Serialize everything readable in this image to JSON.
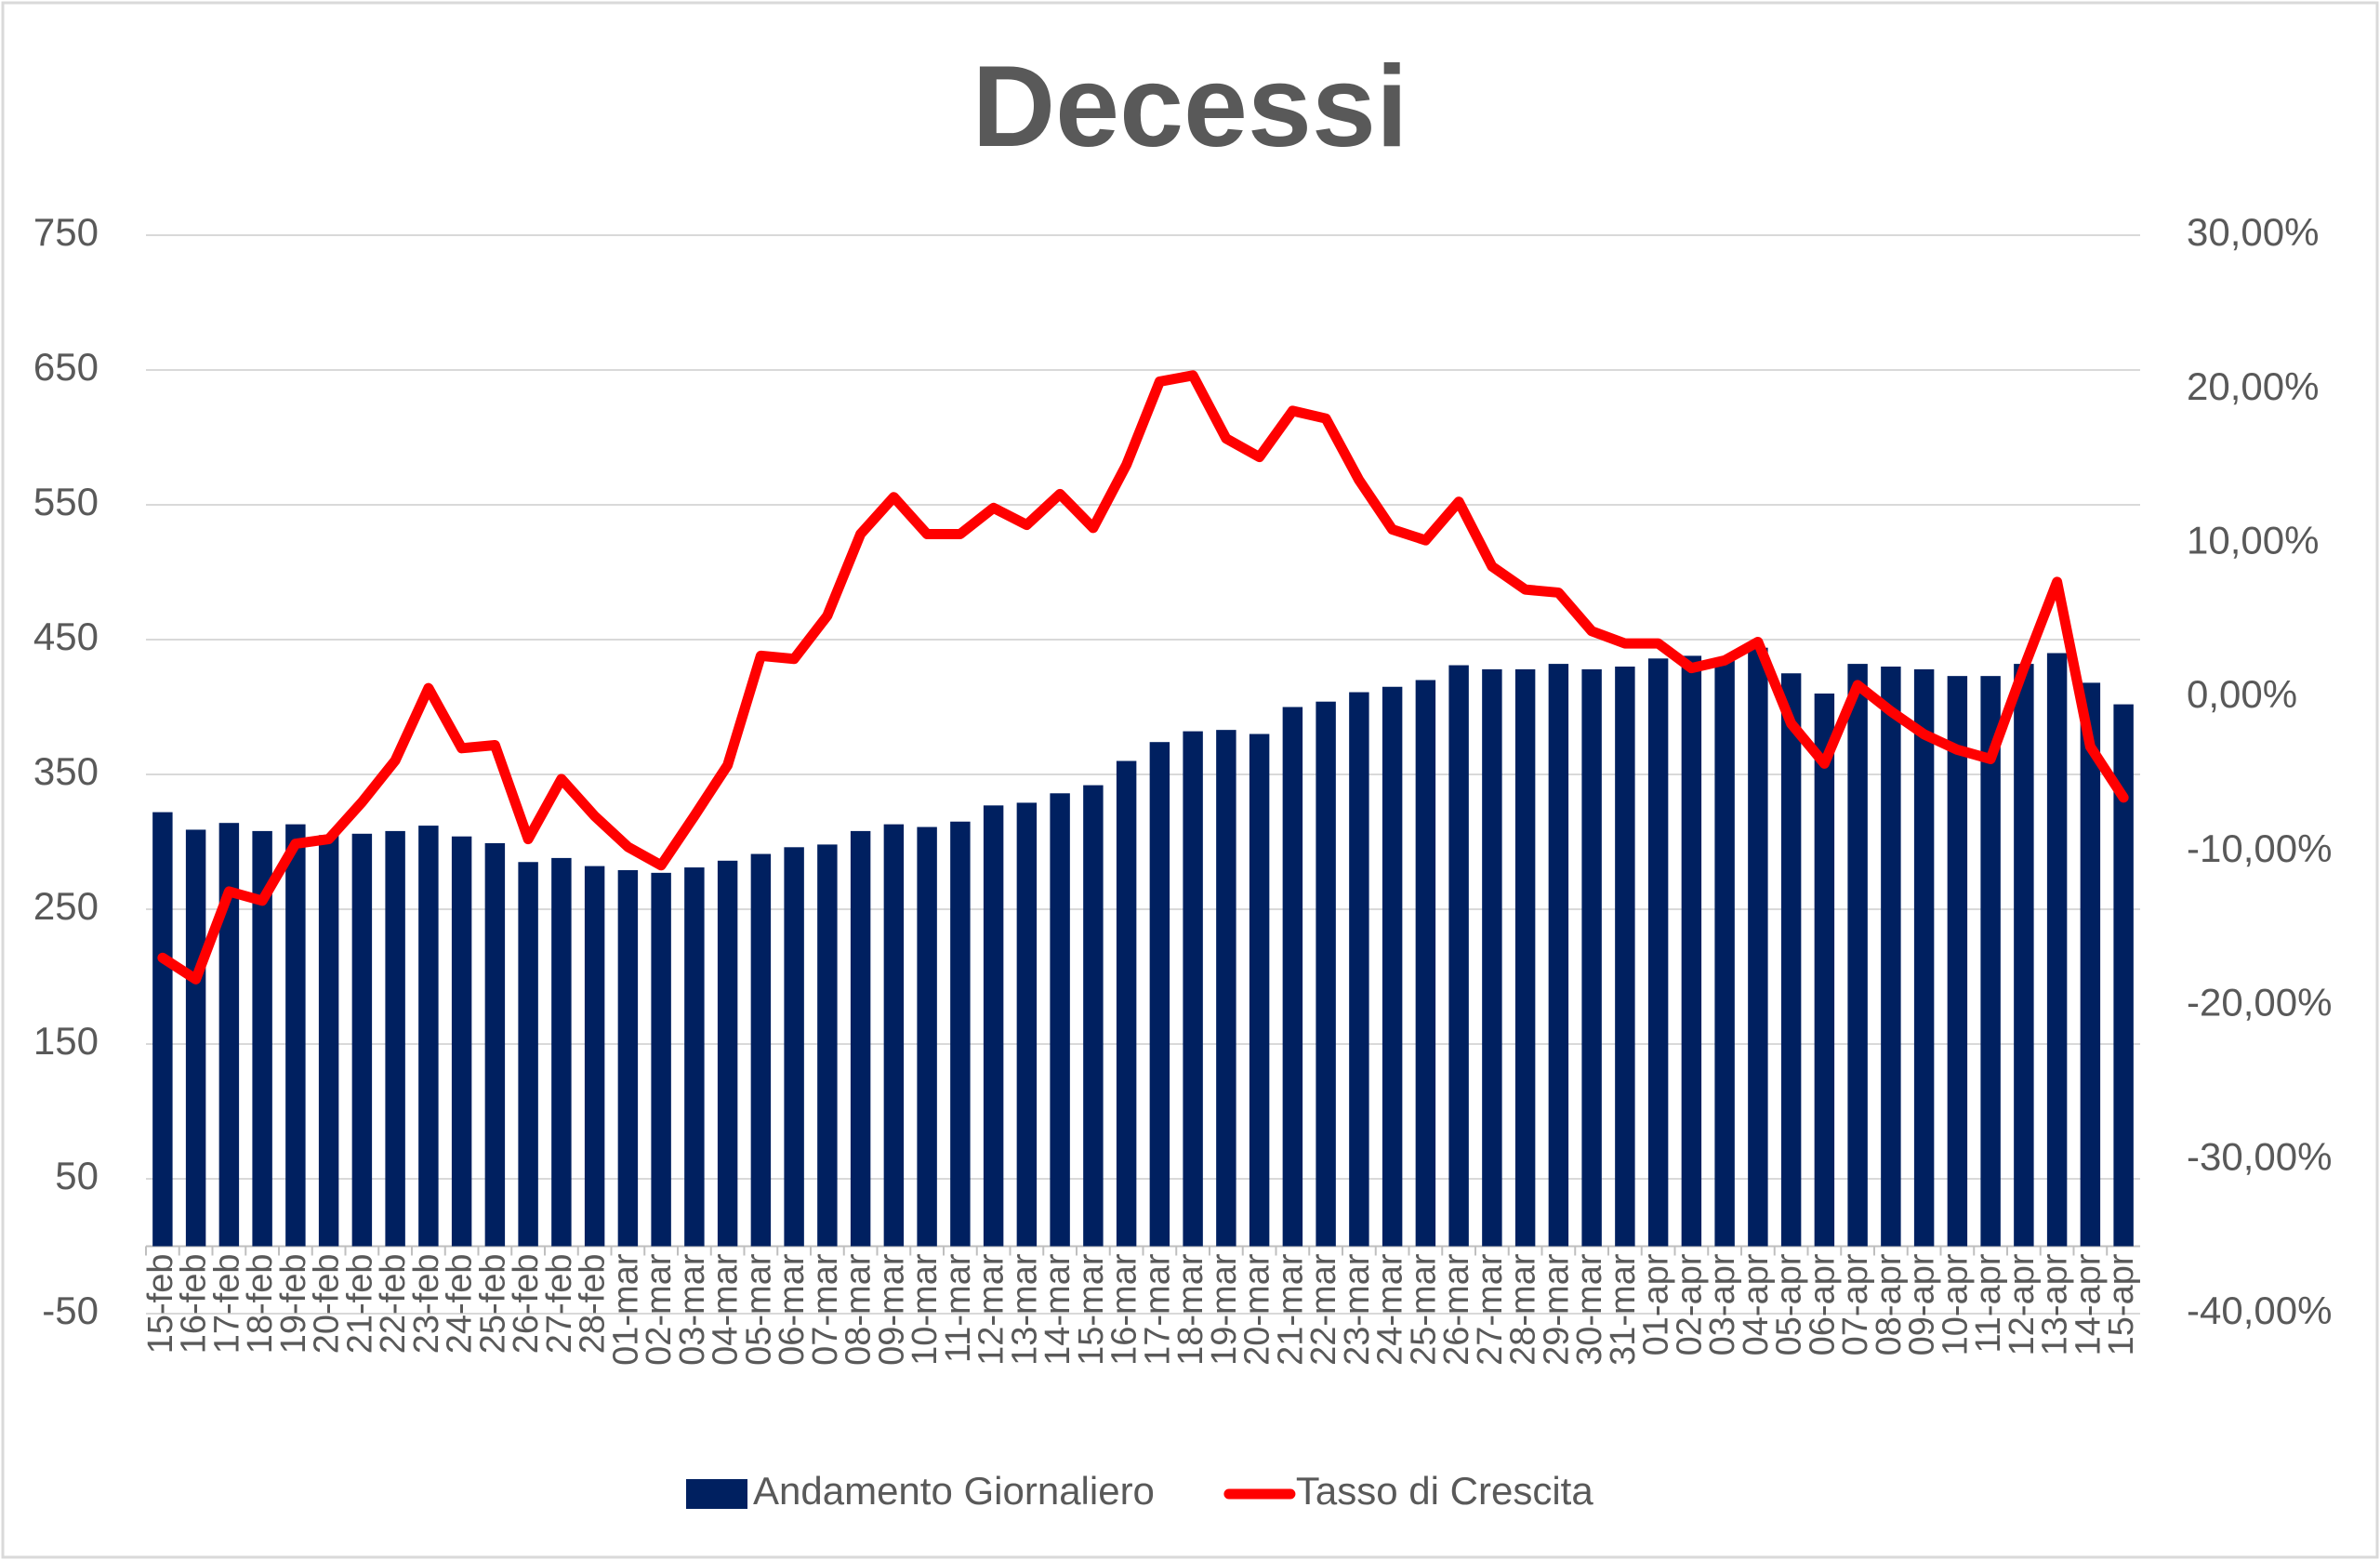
{
  "chart_data": {
    "type": "bar-line",
    "title": "Decessi",
    "categories": [
      "15-feb",
      "16-feb",
      "17-feb",
      "18-feb",
      "19-feb",
      "20-feb",
      "21-feb",
      "22-feb",
      "23-feb",
      "24-feb",
      "25-feb",
      "26-feb",
      "27-feb",
      "28-feb",
      "01-mar",
      "02-mar",
      "03-mar",
      "04-mar",
      "05-mar",
      "06-mar",
      "07-mar",
      "08-mar",
      "09-mar",
      "10-mar",
      "11-mar",
      "12-mar",
      "13-mar",
      "14-mar",
      "15-mar",
      "16-mar",
      "17-mar",
      "18-mar",
      "19-mar",
      "20-mar",
      "21-mar",
      "22-mar",
      "23-mar",
      "24-mar",
      "25-mar",
      "26-mar",
      "27-mar",
      "28-mar",
      "29-mar",
      "30-mar",
      "31-mar",
      "01-apr",
      "02-apr",
      "03-apr",
      "04-apr",
      "05-apr",
      "06-apr",
      "07-apr",
      "08-apr",
      "09-apr",
      "10-apr",
      "11-apr",
      "12-apr",
      "13-apr",
      "14-apr",
      "15-apr"
    ],
    "series": [
      {
        "name": "Andamento Giornaliero",
        "type": "bar",
        "color": "#002060",
        "values": [
          322,
          309,
          314,
          308,
          313,
          305,
          306,
          308,
          312,
          304,
          299,
          285,
          288,
          282,
          279,
          277,
          281,
          286,
          291,
          296,
          298,
          308,
          313,
          311,
          315,
          327,
          329,
          336,
          342,
          360,
          374,
          382,
          383,
          380,
          400,
          404,
          411,
          415,
          420,
          431,
          428,
          428,
          432,
          428,
          430,
          436,
          438,
          436,
          444,
          425,
          410,
          432,
          430,
          428,
          423,
          423,
          432,
          440,
          418,
          402
        ]
      },
      {
        "name": "Tasso di Crescita",
        "type": "line",
        "axis": "y2",
        "color": "#ff0000",
        "values": [
          -16.9,
          -18.3,
          -12.6,
          -13.2,
          -9.5,
          -9.2,
          -6.8,
          -4.1,
          0.6,
          -3.3,
          -3.1,
          -9.2,
          -5.3,
          -7.7,
          -9.7,
          -10.9,
          -7.7,
          -4.4,
          2.7,
          2.5,
          5.3,
          10.6,
          13.0,
          10.6,
          10.6,
          12.3,
          11.2,
          13.2,
          11.0,
          15.1,
          20.5,
          20.9,
          16.8,
          15.6,
          18.6,
          18.1,
          14.1,
          10.9,
          10.2,
          12.7,
          8.5,
          7.0,
          6.8,
          4.3,
          3.5,
          3.5,
          1.9,
          2.4,
          3.6,
          -1.7,
          -4.3,
          0.8,
          -0.9,
          -2.4,
          -3.4,
          -4.0,
          1.9,
          7.5,
          -3.2,
          -6.5
        ]
      }
    ],
    "ylim": [
      -50,
      750
    ],
    "yticks": [
      -50,
      50,
      150,
      250,
      350,
      450,
      550,
      650,
      750
    ],
    "y2lim": [
      -40,
      30
    ],
    "y2ticks": [
      {
        "value": -40,
        "label": "-40,00%"
      },
      {
        "value": -30,
        "label": "-30,00%"
      },
      {
        "value": -20,
        "label": "-20,00%"
      },
      {
        "value": -10,
        "label": "-10,00%"
      },
      {
        "value": 0,
        "label": "0,00%"
      },
      {
        "value": 10,
        "label": "10,00%"
      },
      {
        "value": 20,
        "label": "20,00%"
      },
      {
        "value": 30,
        "label": "30,00%"
      }
    ],
    "grid": true,
    "legend": "bottom"
  }
}
